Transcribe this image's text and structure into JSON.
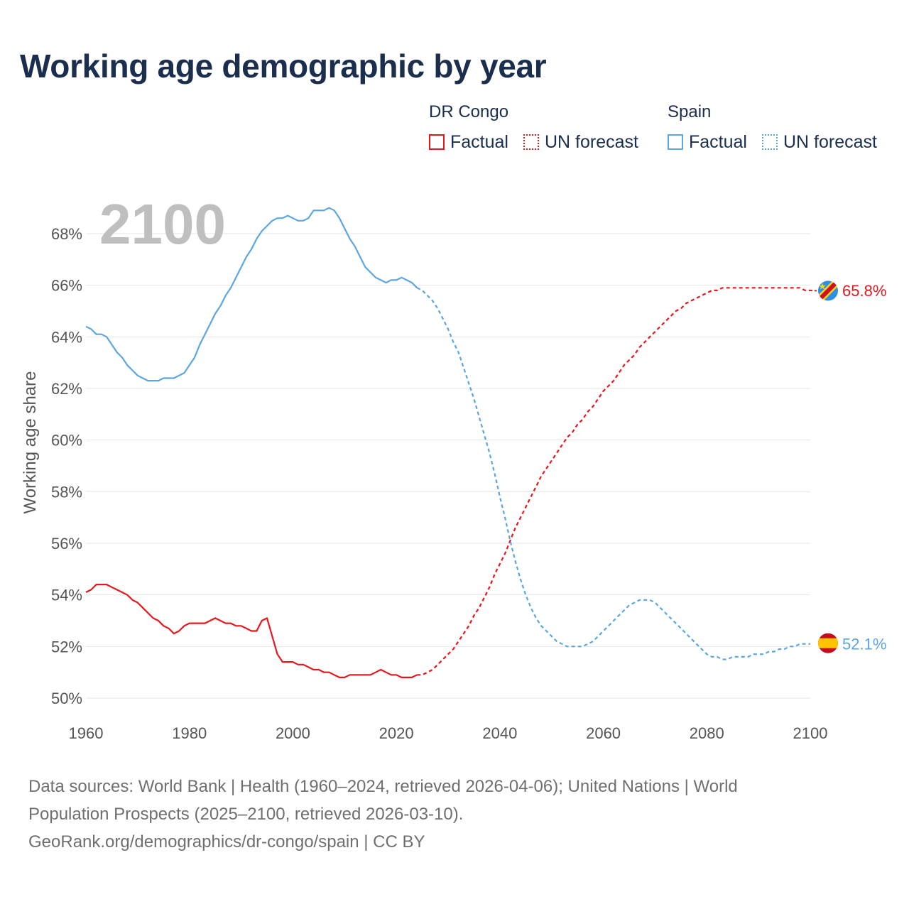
{
  "title": "Working age demographic by year",
  "legend": {
    "groups": [
      {
        "name": "DR Congo",
        "factual_label": "Factual",
        "forecast_label": "UN forecast",
        "color": "#e8161b"
      },
      {
        "name": "Spain",
        "factual_label": "Factual",
        "forecast_label": "UN forecast",
        "color": "#5ba5e2"
      }
    ]
  },
  "year_watermark": "2100",
  "end_labels": {
    "drc": "65.8%",
    "spain": "52.1%"
  },
  "footer": {
    "line1": "Data sources: World Bank | Health (1960–2024, retrieved 2026-04-06); United Nations | World",
    "line2": "Population Prospects (2025–2100, retrieved 2026-03-10).",
    "line3": "GeoRank.org/demographics/dr-congo/spain | CC BY"
  },
  "colors": {
    "title": "#1b2e4e",
    "grid": "#e6e6e6",
    "tick": "#555555",
    "watermark": "#bfbfbf",
    "footer": "#6f6f6f"
  },
  "icons": {
    "drc_flag": "dr-congo-flag-icon",
    "spain_flag": "spain-flag-icon"
  },
  "chart_data": {
    "type": "line",
    "title": "Working age demographic by year",
    "xlabel": "",
    "ylabel": "Working age share",
    "xlim": [
      1960,
      2100
    ],
    "ylim": [
      49.5,
      69.5
    ],
    "x_ticks": [
      1960,
      1980,
      2000,
      2020,
      2040,
      2060,
      2080,
      2100
    ],
    "x_tick_labels": [
      "1960",
      "1980",
      "2000",
      "2020",
      "2040",
      "2060",
      "2080",
      "2100"
    ],
    "y_ticks": [
      50,
      52,
      54,
      56,
      58,
      60,
      62,
      64,
      66,
      68
    ],
    "y_tick_labels": [
      "50%",
      "52%",
      "54%",
      "56%",
      "58%",
      "60%",
      "62%",
      "64%",
      "66%",
      "68%"
    ],
    "grid": true,
    "legend_position": "top-right",
    "series": [
      {
        "name": "DR Congo",
        "segment": "Factual",
        "color": "#e8161b",
        "dash": "solid",
        "x": [
          1960,
          1961,
          1962,
          1963,
          1964,
          1965,
          1966,
          1967,
          1968,
          1969,
          1970,
          1971,
          1972,
          1973,
          1974,
          1975,
          1976,
          1977,
          1978,
          1979,
          1980,
          1981,
          1982,
          1983,
          1984,
          1985,
          1986,
          1987,
          1988,
          1989,
          1990,
          1991,
          1992,
          1993,
          1994,
          1995,
          1996,
          1997,
          1998,
          1999,
          2000,
          2001,
          2002,
          2003,
          2004,
          2005,
          2006,
          2007,
          2008,
          2009,
          2010,
          2011,
          2012,
          2013,
          2014,
          2015,
          2016,
          2017,
          2018,
          2019,
          2020,
          2021,
          2022,
          2023,
          2024
        ],
        "y": [
          54.1,
          54.2,
          54.4,
          54.4,
          54.4,
          54.3,
          54.2,
          54.1,
          54.0,
          53.8,
          53.7,
          53.5,
          53.3,
          53.1,
          53.0,
          52.8,
          52.7,
          52.5,
          52.6,
          52.8,
          52.9,
          52.9,
          52.9,
          52.9,
          53.0,
          53.1,
          53.0,
          52.9,
          52.9,
          52.8,
          52.8,
          52.7,
          52.6,
          52.6,
          53.0,
          53.1,
          52.4,
          51.7,
          51.4,
          51.4,
          51.4,
          51.3,
          51.3,
          51.2,
          51.1,
          51.1,
          51.0,
          51.0,
          50.9,
          50.8,
          50.8,
          50.9,
          50.9,
          50.9,
          50.9,
          50.9,
          51.0,
          51.1,
          51.0,
          50.9,
          50.9,
          50.8,
          50.8,
          50.8,
          50.9
        ]
      },
      {
        "name": "DR Congo",
        "segment": "UN forecast",
        "color": "#e8161b",
        "dash": "dotted",
        "x": [
          2024,
          2025,
          2026,
          2027,
          2028,
          2029,
          2030,
          2031,
          2032,
          2033,
          2034,
          2035,
          2036,
          2037,
          2038,
          2039,
          2040,
          2041,
          2042,
          2043,
          2044,
          2045,
          2046,
          2047,
          2048,
          2049,
          2050,
          2051,
          2052,
          2053,
          2054,
          2055,
          2056,
          2057,
          2058,
          2059,
          2060,
          2061,
          2062,
          2063,
          2064,
          2065,
          2066,
          2067,
          2068,
          2069,
          2070,
          2071,
          2072,
          2073,
          2074,
          2075,
          2076,
          2077,
          2078,
          2079,
          2080,
          2081,
          2082,
          2083,
          2084,
          2085,
          2086,
          2087,
          2088,
          2089,
          2090,
          2091,
          2092,
          2093,
          2094,
          2095,
          2096,
          2097,
          2098,
          2099,
          2100
        ],
        "y": [
          50.9,
          50.9,
          51.0,
          51.1,
          51.3,
          51.5,
          51.7,
          51.9,
          52.2,
          52.5,
          52.8,
          53.2,
          53.5,
          53.9,
          54.3,
          54.8,
          55.2,
          55.6,
          56.1,
          56.6,
          57.0,
          57.4,
          57.8,
          58.2,
          58.6,
          58.9,
          59.2,
          59.5,
          59.8,
          60.1,
          60.3,
          60.6,
          60.8,
          61.1,
          61.3,
          61.6,
          61.9,
          62.1,
          62.3,
          62.6,
          62.9,
          63.1,
          63.3,
          63.6,
          63.8,
          64.0,
          64.2,
          64.4,
          64.6,
          64.8,
          65.0,
          65.1,
          65.3,
          65.4,
          65.5,
          65.6,
          65.7,
          65.8,
          65.8,
          65.9,
          65.9,
          65.9,
          65.9,
          65.9,
          65.9,
          65.9,
          65.9,
          65.9,
          65.9,
          65.9,
          65.9,
          65.9,
          65.9,
          65.9,
          65.9,
          65.8,
          65.8
        ]
      },
      {
        "name": "Spain",
        "segment": "Factual",
        "color": "#5ba5e2",
        "dash": "solid",
        "x": [
          1960,
          1961,
          1962,
          1963,
          1964,
          1965,
          1966,
          1967,
          1968,
          1969,
          1970,
          1971,
          1972,
          1973,
          1974,
          1975,
          1976,
          1977,
          1978,
          1979,
          1980,
          1981,
          1982,
          1983,
          1984,
          1985,
          1986,
          1987,
          1988,
          1989,
          1990,
          1991,
          1992,
          1993,
          1994,
          1995,
          1996,
          1997,
          1998,
          1999,
          2000,
          2001,
          2002,
          2003,
          2004,
          2005,
          2006,
          2007,
          2008,
          2009,
          2010,
          2011,
          2012,
          2013,
          2014,
          2015,
          2016,
          2017,
          2018,
          2019,
          2020,
          2021,
          2022,
          2023,
          2024
        ],
        "y": [
          64.4,
          64.3,
          64.1,
          64.1,
          64.0,
          63.7,
          63.4,
          63.2,
          62.9,
          62.7,
          62.5,
          62.4,
          62.3,
          62.3,
          62.3,
          62.4,
          62.4,
          62.4,
          62.5,
          62.6,
          62.9,
          63.2,
          63.7,
          64.1,
          64.5,
          64.9,
          65.2,
          65.6,
          65.9,
          66.3,
          66.7,
          67.1,
          67.4,
          67.8,
          68.1,
          68.3,
          68.5,
          68.6,
          68.6,
          68.7,
          68.6,
          68.5,
          68.5,
          68.6,
          68.9,
          68.9,
          68.9,
          69.0,
          68.9,
          68.6,
          68.2,
          67.8,
          67.5,
          67.1,
          66.7,
          66.5,
          66.3,
          66.2,
          66.1,
          66.2,
          66.2,
          66.3,
          66.2,
          66.1,
          65.9
        ]
      },
      {
        "name": "Spain",
        "segment": "UN forecast",
        "color": "#5ba5e2",
        "dash": "dotted",
        "x": [
          2024,
          2025,
          2026,
          2027,
          2028,
          2029,
          2030,
          2031,
          2032,
          2033,
          2034,
          2035,
          2036,
          2037,
          2038,
          2039,
          2040,
          2041,
          2042,
          2043,
          2044,
          2045,
          2046,
          2047,
          2048,
          2049,
          2050,
          2051,
          2052,
          2053,
          2054,
          2055,
          2056,
          2057,
          2058,
          2059,
          2060,
          2061,
          2062,
          2063,
          2064,
          2065,
          2066,
          2067,
          2068,
          2069,
          2070,
          2071,
          2072,
          2073,
          2074,
          2075,
          2076,
          2077,
          2078,
          2079,
          2080,
          2081,
          2082,
          2083,
          2084,
          2085,
          2086,
          2087,
          2088,
          2089,
          2090,
          2091,
          2092,
          2093,
          2094,
          2095,
          2096,
          2097,
          2098,
          2099,
          2100
        ],
        "y": [
          65.9,
          65.8,
          65.6,
          65.4,
          65.1,
          64.7,
          64.3,
          63.8,
          63.4,
          62.8,
          62.2,
          61.6,
          60.9,
          60.2,
          59.5,
          58.7,
          57.8,
          57.0,
          56.1,
          55.3,
          54.6,
          54.0,
          53.5,
          53.1,
          52.8,
          52.6,
          52.4,
          52.2,
          52.1,
          52.0,
          52.0,
          52.0,
          52.0,
          52.1,
          52.2,
          52.4,
          52.6,
          52.8,
          53.0,
          53.2,
          53.4,
          53.6,
          53.7,
          53.8,
          53.8,
          53.8,
          53.7,
          53.5,
          53.3,
          53.1,
          52.9,
          52.7,
          52.5,
          52.3,
          52.1,
          51.9,
          51.7,
          51.6,
          51.6,
          51.5,
          51.5,
          51.6,
          51.6,
          51.6,
          51.6,
          51.7,
          51.7,
          51.7,
          51.8,
          51.8,
          51.9,
          51.9,
          52.0,
          52.0,
          52.1,
          52.1,
          52.1
        ]
      }
    ],
    "end_values": {
      "DR Congo": 65.8,
      "Spain": 52.1
    }
  }
}
